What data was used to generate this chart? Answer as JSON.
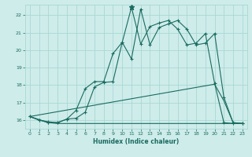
{
  "xlabel": "Humidex (Indice chaleur)",
  "bg_color": "#ceecea",
  "grid_color": "#a8d8d4",
  "line_color": "#1a6b60",
  "xlim": [
    -0.5,
    23.5
  ],
  "ylim": [
    15.5,
    22.6
  ],
  "yticks": [
    16,
    17,
    18,
    19,
    20,
    21,
    22
  ],
  "xticks": [
    0,
    1,
    2,
    3,
    4,
    5,
    6,
    7,
    8,
    9,
    10,
    11,
    12,
    13,
    14,
    15,
    16,
    17,
    18,
    19,
    20,
    21,
    22,
    23
  ],
  "line1_x": [
    0,
    1,
    2,
    3,
    4,
    5,
    6,
    7,
    8,
    9,
    10,
    11,
    12,
    13,
    14,
    15,
    16,
    17,
    18,
    19,
    20,
    21,
    22,
    23
  ],
  "line1_y": [
    16.2,
    16.0,
    15.85,
    15.85,
    16.05,
    16.55,
    17.8,
    18.2,
    18.2,
    19.8,
    20.45,
    22.45,
    20.35,
    21.35,
    21.55,
    21.7,
    21.2,
    20.3,
    20.4,
    20.95,
    18.1,
    15.85,
    15.8,
    15.8
  ],
  "line2_x": [
    0,
    1,
    2,
    3,
    4,
    5,
    6,
    7,
    8,
    9,
    10,
    11,
    12,
    13,
    14,
    15,
    16,
    17,
    18,
    19,
    20,
    21,
    22,
    23
  ],
  "line2_y": [
    16.2,
    16.0,
    15.9,
    15.85,
    16.05,
    16.1,
    16.45,
    17.9,
    18.15,
    18.2,
    20.45,
    19.5,
    22.35,
    20.3,
    21.3,
    21.5,
    21.7,
    21.2,
    20.3,
    20.4,
    20.95,
    17.3,
    15.85,
    15.8
  ],
  "line3_x": [
    0,
    2,
    3,
    23
  ],
  "line3_y": [
    16.2,
    15.85,
    15.8,
    15.8
  ],
  "line4_x": [
    0,
    20,
    21,
    22,
    23
  ],
  "line4_y": [
    16.2,
    18.05,
    17.1,
    15.85,
    15.8
  ]
}
